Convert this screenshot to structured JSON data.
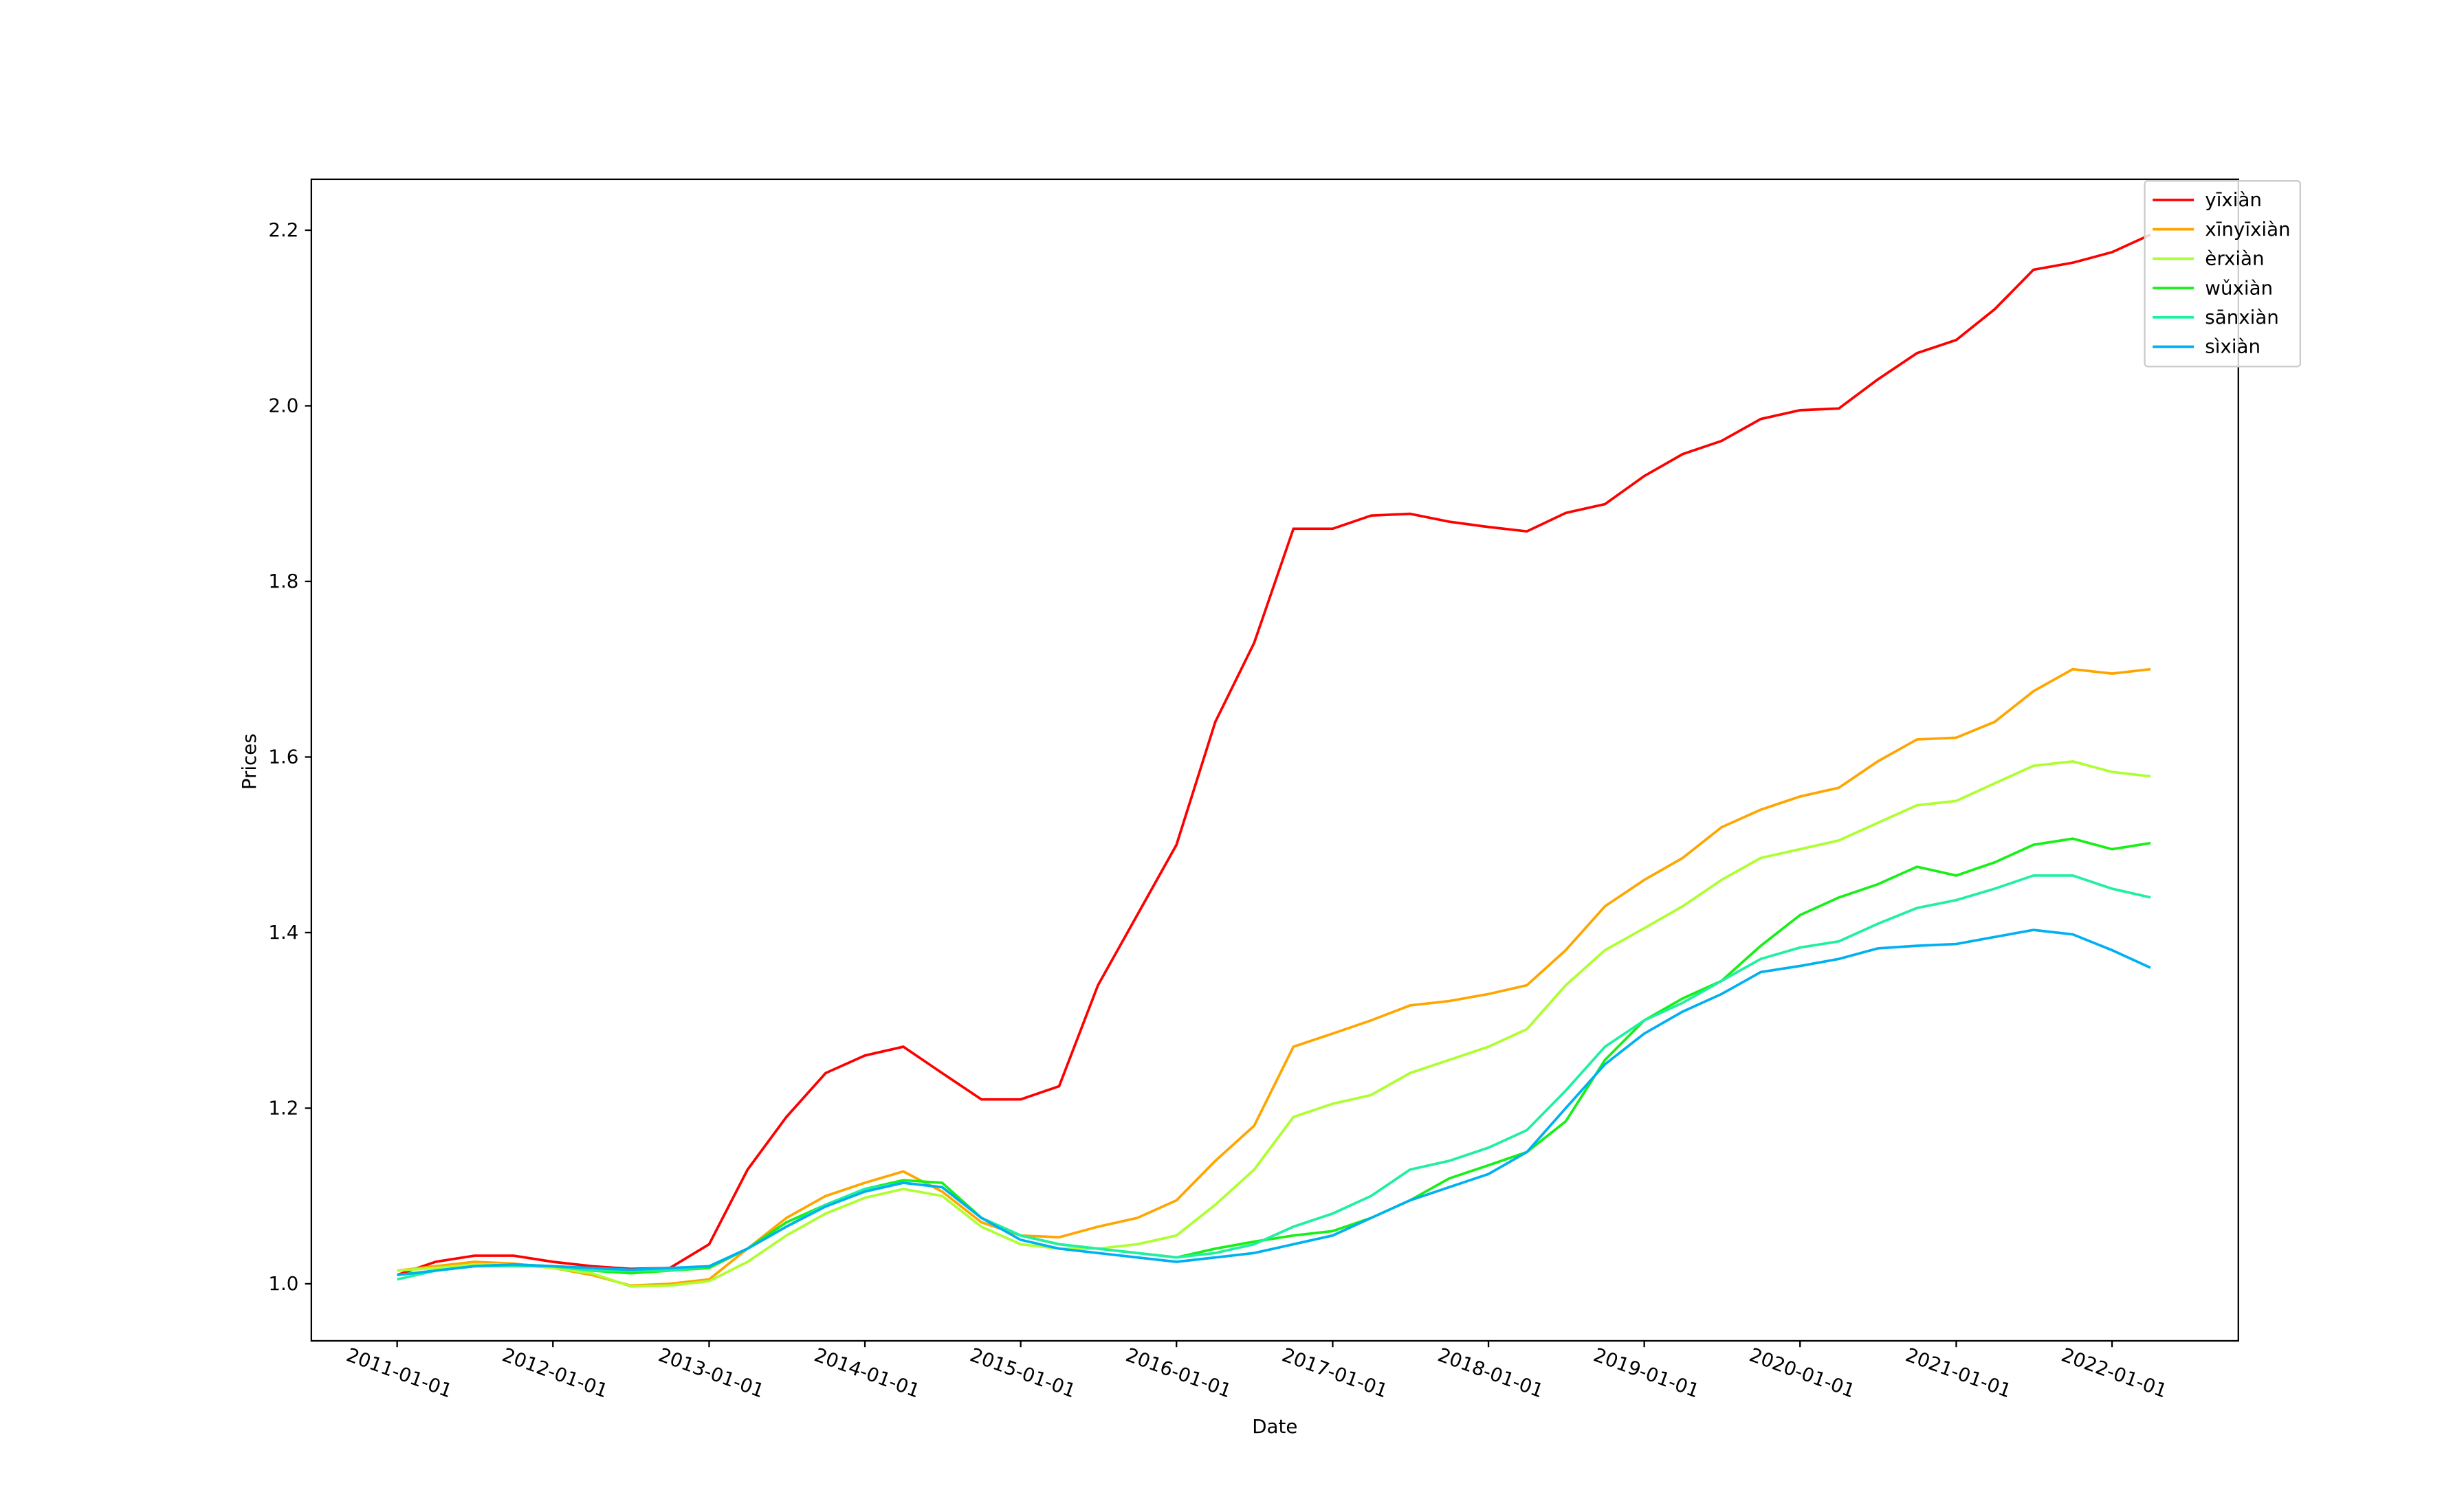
{
  "chart_data": {
    "type": "line",
    "xlabel": "Date",
    "ylabel": "Prices",
    "x": [
      "2011-01-01",
      "2011-04-01",
      "2011-07-01",
      "2011-10-01",
      "2012-01-01",
      "2012-04-01",
      "2012-07-01",
      "2012-10-01",
      "2013-01-01",
      "2013-04-01",
      "2013-07-01",
      "2013-10-01",
      "2014-01-01",
      "2014-04-01",
      "2014-07-01",
      "2014-10-01",
      "2015-01-01",
      "2015-04-01",
      "2015-07-01",
      "2015-10-01",
      "2016-01-01",
      "2016-04-01",
      "2016-07-01",
      "2016-10-01",
      "2017-01-01",
      "2017-04-01",
      "2017-07-01",
      "2017-10-01",
      "2018-01-01",
      "2018-04-01",
      "2018-07-01",
      "2018-10-01",
      "2019-01-01",
      "2019-04-01",
      "2019-07-01",
      "2019-10-01",
      "2020-01-01",
      "2020-04-01",
      "2020-07-01",
      "2020-10-01",
      "2021-01-01",
      "2021-04-01",
      "2021-07-01",
      "2021-10-01",
      "2022-01-01",
      "2022-04-01"
    ],
    "series": [
      {
        "name": "yīxiàn",
        "color": "#ff0000",
        "values": [
          1.01,
          1.025,
          1.032,
          1.032,
          1.025,
          1.02,
          1.017,
          1.018,
          1.045,
          1.13,
          1.19,
          1.24,
          1.26,
          1.27,
          1.24,
          1.21,
          1.21,
          1.225,
          1.34,
          1.42,
          1.5,
          1.64,
          1.73,
          1.86,
          1.86,
          1.875,
          1.877,
          1.868,
          1.862,
          1.857,
          1.878,
          1.888,
          1.92,
          1.945,
          1.96,
          1.985,
          1.995,
          1.997,
          2.03,
          2.06,
          2.075,
          2.11,
          2.155,
          2.163,
          2.175,
          2.195
        ]
      },
      {
        "name": "xīnyīxiàn",
        "color": "#ffa500",
        "values": [
          1.015,
          1.02,
          1.025,
          1.023,
          1.018,
          1.01,
          0.998,
          1.0,
          1.005,
          1.04,
          1.075,
          1.1,
          1.115,
          1.128,
          1.105,
          1.07,
          1.055,
          1.053,
          1.065,
          1.075,
          1.095,
          1.14,
          1.18,
          1.27,
          1.285,
          1.3,
          1.317,
          1.322,
          1.33,
          1.34,
          1.38,
          1.43,
          1.46,
          1.485,
          1.52,
          1.54,
          1.555,
          1.565,
          1.595,
          1.62,
          1.622,
          1.64,
          1.675,
          1.7,
          1.695,
          1.7
        ]
      },
      {
        "name": "èrxiàn",
        "color": "#adff2f",
        "values": [
          1.015,
          1.018,
          1.022,
          1.022,
          1.018,
          1.012,
          0.997,
          0.998,
          1.003,
          1.025,
          1.055,
          1.08,
          1.098,
          1.108,
          1.1,
          1.065,
          1.045,
          1.04,
          1.04,
          1.045,
          1.055,
          1.09,
          1.13,
          1.19,
          1.205,
          1.215,
          1.24,
          1.255,
          1.27,
          1.29,
          1.34,
          1.38,
          1.405,
          1.43,
          1.46,
          1.485,
          1.495,
          1.505,
          1.525,
          1.545,
          1.55,
          1.57,
          1.59,
          1.595,
          1.583,
          1.578
        ]
      },
      {
        "name": "wǔxiàn",
        "color": "#16f016",
        "values": [
          1.01,
          1.015,
          1.02,
          1.022,
          1.02,
          1.015,
          1.012,
          1.015,
          1.018,
          1.04,
          1.07,
          1.09,
          1.108,
          1.118,
          1.115,
          1.075,
          1.055,
          1.045,
          1.04,
          1.035,
          1.03,
          1.04,
          1.048,
          1.055,
          1.06,
          1.075,
          1.095,
          1.12,
          1.135,
          1.15,
          1.185,
          1.255,
          1.3,
          1.325,
          1.345,
          1.385,
          1.42,
          1.44,
          1.455,
          1.475,
          1.465,
          1.48,
          1.5,
          1.507,
          1.495,
          1.502
        ]
      },
      {
        "name": "sānxiàn",
        "color": "#1ef0a0",
        "values": [
          1.005,
          1.015,
          1.02,
          1.02,
          1.02,
          1.015,
          1.015,
          1.015,
          1.02,
          1.04,
          1.065,
          1.09,
          1.108,
          1.115,
          1.11,
          1.075,
          1.055,
          1.045,
          1.04,
          1.035,
          1.03,
          1.035,
          1.045,
          1.065,
          1.08,
          1.1,
          1.13,
          1.14,
          1.155,
          1.175,
          1.22,
          1.27,
          1.3,
          1.32,
          1.345,
          1.37,
          1.383,
          1.39,
          1.41,
          1.428,
          1.437,
          1.45,
          1.465,
          1.465,
          1.45,
          1.44
        ]
      },
      {
        "name": "sìxiàn",
        "color": "#00b0f0",
        "values": [
          1.01,
          1.015,
          1.02,
          1.022,
          1.02,
          1.018,
          1.016,
          1.018,
          1.02,
          1.04,
          1.065,
          1.088,
          1.105,
          1.115,
          1.11,
          1.075,
          1.05,
          1.04,
          1.035,
          1.03,
          1.025,
          1.03,
          1.035,
          1.045,
          1.055,
          1.075,
          1.095,
          1.11,
          1.125,
          1.15,
          1.2,
          1.25,
          1.285,
          1.31,
          1.33,
          1.355,
          1.362,
          1.37,
          1.382,
          1.385,
          1.387,
          1.395,
          1.403,
          1.398,
          1.38,
          1.36
        ]
      }
    ],
    "xlim": [
      "2010-06-14",
      "2022-10-24"
    ],
    "xticks": [
      "2011-01-01",
      "2012-01-01",
      "2013-01-01",
      "2014-01-01",
      "2015-01-01",
      "2016-01-01",
      "2017-01-01",
      "2018-01-01",
      "2019-01-01",
      "2020-01-01",
      "2021-01-01",
      "2022-01-01"
    ],
    "ylim": [
      0.935,
      2.258
    ],
    "yticks": [
      {
        "value": 1,
        "label": "1.0"
      },
      1.2,
      1.4,
      1.6,
      1.8,
      {
        "value": 2,
        "label": "2.0"
      },
      2.2
    ],
    "legend": "upper right",
    "grid": false
  }
}
